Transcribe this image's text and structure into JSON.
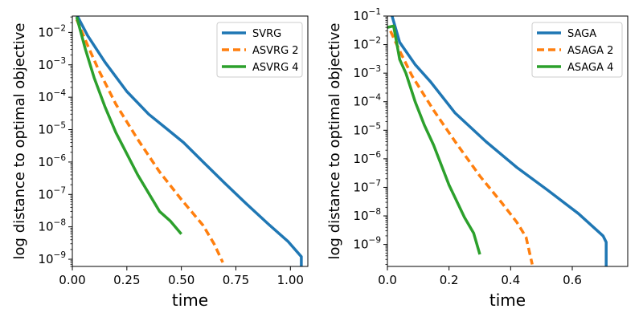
{
  "chart_data": [
    {
      "type": "line",
      "title": "",
      "xlabel": "time",
      "ylabel": "log distance to optimal objective",
      "xscale": "linear",
      "yscale": "log",
      "xlim": [
        0.0,
        1.08
      ],
      "ylim": [
        6e-10,
        0.032
      ],
      "xticks": [
        0.0,
        0.25,
        0.5,
        0.75,
        1.0
      ],
      "xtick_labels": [
        "0.00",
        "0.25",
        "0.50",
        "0.75",
        "1.00"
      ],
      "yticks": [
        1e-09,
        1e-08,
        1e-07,
        1e-06,
        1e-05,
        0.0001,
        0.001,
        0.01
      ],
      "ytick_labels": [
        {
          "base": "10",
          "exp": "−9"
        },
        {
          "base": "10",
          "exp": "−8"
        },
        {
          "base": "10",
          "exp": "−7"
        },
        {
          "base": "10",
          "exp": "−6"
        },
        {
          "base": "10",
          "exp": "−5"
        },
        {
          "base": "10",
          "exp": "−4"
        },
        {
          "base": "10",
          "exp": "−3"
        },
        {
          "base": "10",
          "exp": "−2"
        }
      ],
      "legend_position": "top-right",
      "grid": false,
      "series": [
        {
          "name": "SVRG",
          "color": "#1f77b4",
          "style": "solid",
          "x": [
            0.02,
            0.07,
            0.15,
            0.25,
            0.35,
            0.43,
            0.51,
            0.6,
            0.7,
            0.8,
            0.9,
            0.99,
            1.05,
            1.05
          ],
          "y": [
            0.035,
            0.008,
            0.0012,
            0.00015,
            3e-05,
            1.1e-05,
            4e-06,
            1e-06,
            2.2e-07,
            5e-08,
            1.2e-08,
            3.5e-09,
            1.2e-09,
            5e-10
          ]
        },
        {
          "name": "ASVRG 2",
          "color": "#ff7f0e",
          "style": "dashed",
          "x": [
            0.02,
            0.07,
            0.12,
            0.2,
            0.3,
            0.4,
            0.5,
            0.6,
            0.65,
            0.69
          ],
          "y": [
            0.025,
            0.004,
            0.0007,
            6e-05,
            5e-06,
            5e-07,
            7e-08,
            1.1e-08,
            3e-09,
            8e-10
          ]
        },
        {
          "name": "ASVRG 4",
          "color": "#2ca02c",
          "style": "solid",
          "x": [
            0.02,
            0.06,
            0.1,
            0.15,
            0.2,
            0.3,
            0.4,
            0.45,
            0.5
          ],
          "y": [
            0.03,
            0.003,
            0.0004,
            5e-05,
            8e-06,
            4e-07,
            3e-08,
            1.5e-08,
            6e-09
          ]
        }
      ]
    },
    {
      "type": "line",
      "title": "",
      "xlabel": "time",
      "ylabel": "log distance to optimal objective",
      "xscale": "linear",
      "yscale": "log",
      "xlim": [
        0.0,
        0.78
      ],
      "ylim": [
        1.7e-10,
        0.1
      ],
      "xticks": [
        0.0,
        0.2,
        0.4,
        0.6
      ],
      "xtick_labels": [
        "0.0",
        "0.2",
        "0.4",
        "0.6"
      ],
      "yticks": [
        1e-09,
        1e-08,
        1e-07,
        1e-06,
        1e-05,
        0.0001,
        0.001,
        0.01,
        0.1
      ],
      "ytick_labels": [
        {
          "base": "10",
          "exp": "−9"
        },
        {
          "base": "10",
          "exp": "−8"
        },
        {
          "base": "10",
          "exp": "−7"
        },
        {
          "base": "10",
          "exp": "−6"
        },
        {
          "base": "10",
          "exp": "−5"
        },
        {
          "base": "10",
          "exp": "−4"
        },
        {
          "base": "10",
          "exp": "−3"
        },
        {
          "base": "10",
          "exp": "−2"
        },
        {
          "base": "10",
          "exp": "−1"
        }
      ],
      "legend_position": "top-right",
      "grid": false,
      "series": [
        {
          "name": "SAGA",
          "color": "#1f77b4",
          "style": "solid",
          "x": [
            0.015,
            0.04,
            0.09,
            0.14,
            0.22,
            0.32,
            0.42,
            0.52,
            0.62,
            0.7,
            0.71,
            0.71
          ],
          "y": [
            0.1,
            0.012,
            0.002,
            0.0005,
            4e-05,
            4e-06,
            5e-07,
            8e-08,
            1.2e-08,
            2e-09,
            1.2e-09,
            1.5e-10
          ]
        },
        {
          "name": "ASAGA 2",
          "color": "#ff7f0e",
          "style": "dashed",
          "x": [
            0.01,
            0.04,
            0.08,
            0.15,
            0.22,
            0.3,
            0.37,
            0.42,
            0.45,
            0.47
          ],
          "y": [
            0.03,
            0.006,
            0.0008,
            5e-05,
            4e-06,
            2.5e-07,
            3e-08,
            6e-09,
            1.8e-09,
            2e-10
          ]
        },
        {
          "name": "ASAGA 4",
          "color": "#2ca02c",
          "style": "solid",
          "x": [
            0.0,
            0.02,
            0.04,
            0.06,
            0.09,
            0.12,
            0.15,
            0.2,
            0.25,
            0.28,
            0.3
          ],
          "y": [
            0.04,
            0.045,
            0.003,
            0.001,
            0.0001,
            1.5e-05,
            3e-06,
            1.2e-07,
            9e-09,
            2.5e-09,
            4.5e-10
          ]
        }
      ]
    }
  ]
}
